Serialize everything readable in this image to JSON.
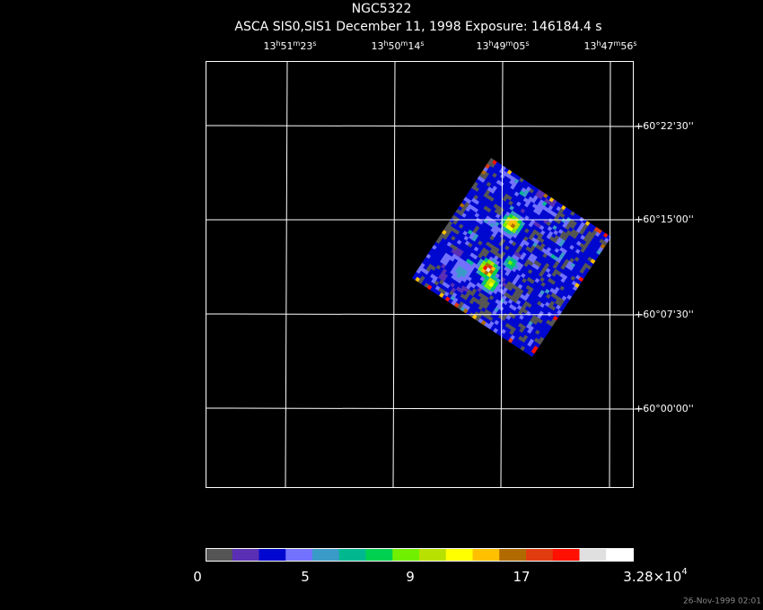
{
  "title": "NGC5322",
  "subtitle": "ASCA SIS0,SIS1 December 11, 1998 Exposure: 146184.4 s",
  "ra_labels": [
    [
      "13",
      "h",
      "51",
      "m",
      "23",
      "s"
    ],
    [
      "13",
      "h",
      "50",
      "m",
      "14",
      "s"
    ],
    [
      "13",
      "h",
      "49",
      "m",
      "05",
      "s"
    ],
    [
      "13",
      "h",
      "47",
      "m",
      "56",
      "s"
    ]
  ],
  "dec_labels": [
    "+60°22'30''",
    "+60°15'00''",
    "+60°07'30''",
    "+60°00'00''"
  ],
  "colorbar": {
    "colors": [
      "#555555",
      "#5a2fb4",
      "#0008d0",
      "#7272ff",
      "#3a9ac8",
      "#00b890",
      "#00d050",
      "#70f000",
      "#b8e000",
      "#ffff00",
      "#ffc000",
      "#b06a00",
      "#e03c10",
      "#ff1000",
      "#e0e0e0",
      "#ffffff"
    ],
    "labels": [
      [
        "0"
      ],
      [
        "5"
      ],
      [
        "9"
      ],
      [
        "17"
      ],
      [
        "3.28×10",
        "4"
      ]
    ]
  },
  "timestamp": "26-Nov-1999 02:01"
}
